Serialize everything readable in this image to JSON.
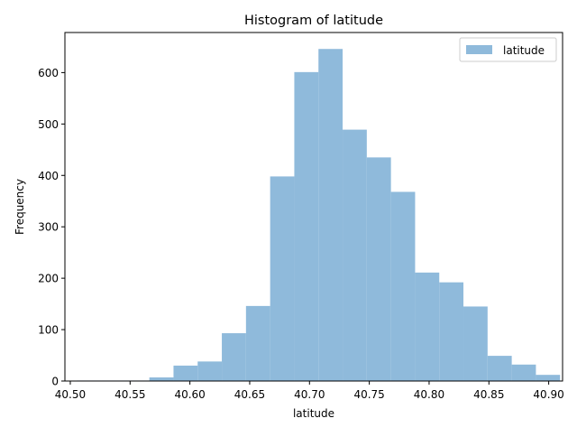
{
  "chart_data": {
    "type": "bar",
    "title": "Histogram of latitude",
    "xlabel": "latitude",
    "ylabel": "Frequency",
    "xlim": [
      40.4955,
      40.9116
    ],
    "ylim": [
      0,
      678
    ],
    "x_ticks": [
      "40.50",
      "40.55",
      "40.60",
      "40.65",
      "40.70",
      "40.75",
      "40.80",
      "40.85",
      "40.90"
    ],
    "y_ticks": [
      "0",
      "100",
      "200",
      "300",
      "400",
      "500",
      "600"
    ],
    "grid": false,
    "legend": {
      "position": "top-right",
      "entries": [
        "latitude"
      ]
    },
    "series": [
      {
        "name": "latitude",
        "color": "#8fbadb",
        "bin_edges": [
          40.5055,
          40.5257,
          40.5459,
          40.5661,
          40.5863,
          40.6065,
          40.6267,
          40.6469,
          40.6671,
          40.6873,
          40.7075,
          40.7277,
          40.7479,
          40.7681,
          40.7883,
          40.8085,
          40.8287,
          40.8489,
          40.8691,
          40.8893,
          40.9095
        ],
        "values": [
          1,
          1,
          1,
          7,
          30,
          38,
          93,
          146,
          398,
          601,
          646,
          489,
          435,
          368,
          211,
          192,
          145,
          49,
          32,
          12
        ]
      }
    ]
  }
}
